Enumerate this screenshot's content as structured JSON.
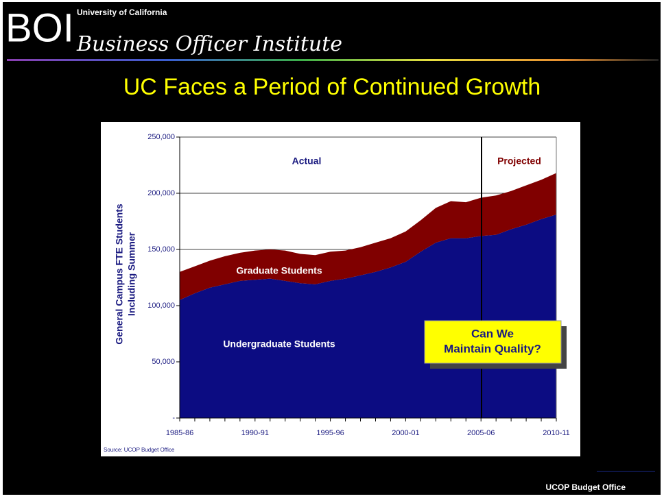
{
  "header": {
    "logo": "BOI",
    "university": "University of California",
    "institute": "Business Officer Institute"
  },
  "title": "UC Faces a Period of Continued Growth",
  "footer": "UCOP Budget Office",
  "chart_data": {
    "type": "stacked_area",
    "ylabel": [
      "General Campus FTE Students",
      "Including Summer"
    ],
    "categories": [
      "1985-86",
      null,
      null,
      null,
      null,
      "1990-91",
      null,
      null,
      null,
      null,
      "1995-96",
      null,
      null,
      null,
      null,
      "2000-01",
      null,
      null,
      null,
      null,
      "2005-06",
      null,
      null,
      null,
      null,
      "2010-11"
    ],
    "series": [
      {
        "name": "Undergraduate Students",
        "color": "#0c0c82",
        "values": [
          105000,
          111000,
          116000,
          119000,
          122000,
          123000,
          124000,
          122000,
          120000,
          119000,
          122000,
          124000,
          127000,
          130000,
          134000,
          139000,
          148000,
          156000,
          160000,
          160000,
          162000,
          163000,
          168000,
          172000,
          177000,
          181000
        ]
      },
      {
        "name": "Graduate Students",
        "color": "#800000",
        "values": [
          25000,
          24000,
          24000,
          25000,
          25000,
          26000,
          26000,
          27000,
          26000,
          26000,
          26000,
          25000,
          25000,
          26000,
          26000,
          27000,
          28000,
          31000,
          33000,
          32000,
          34000,
          35000,
          34000,
          35000,
          35000,
          37000
        ]
      }
    ],
    "ylim": [
      0,
      250000
    ],
    "yticks": [
      {
        "value": 0,
        "label": "-"
      },
      {
        "value": 50000,
        "label": "50,000"
      },
      {
        "value": 100000,
        "label": "100,000"
      },
      {
        "value": 150000,
        "label": "150,000"
      },
      {
        "value": 200000,
        "label": "200,000"
      },
      {
        "value": 250000,
        "label": "250,000"
      }
    ],
    "grid": true,
    "annotations": [
      "Actual",
      "Projected"
    ],
    "callout": [
      "Can We",
      "Maintain Quality?"
    ],
    "source": "Source:  UCOP Budget Office"
  }
}
